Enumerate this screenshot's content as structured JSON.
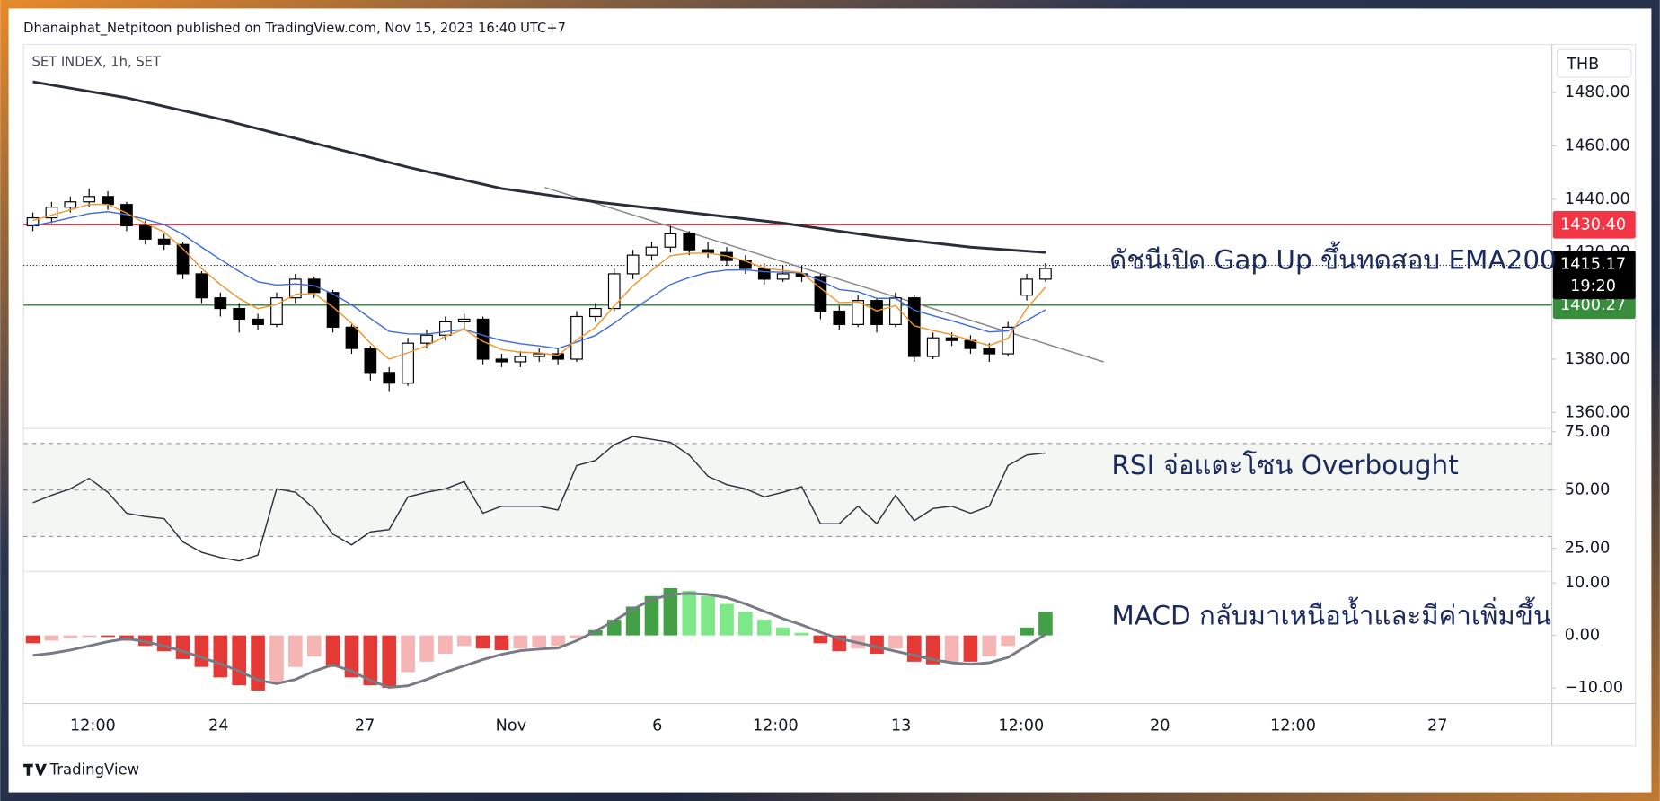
{
  "page": {
    "publisher_line": "Dhanaiphat_Netpitoon published on TradingView.com, Nov 15, 2023 16:40 UTC+7",
    "symbol": "SET INDEX, 1h, SET",
    "currency": "THB",
    "footer": "TradingView"
  },
  "chart_data": [
    {
      "type": "candlestick",
      "xlim": [
        -0.5,
        81
      ],
      "xticks": [
        {
          "value": 3.2,
          "label": "12:00"
        },
        {
          "value": 9.9,
          "label": "24"
        },
        {
          "value": 17.7,
          "label": "27"
        },
        {
          "value": 25.5,
          "label": "Nov"
        },
        {
          "value": 33.3,
          "label": "6"
        },
        {
          "value": 39.6,
          "label": "12:00"
        },
        {
          "value": 46.3,
          "label": "13"
        },
        {
          "value": 52.7,
          "label": "12:00"
        },
        {
          "value": 60.1,
          "label": "20"
        },
        {
          "value": 67.2,
          "label": "12:00"
        },
        {
          "value": 74.9,
          "label": "27"
        }
      ],
      "ylim": [
        1354,
        1498
      ],
      "yticks": [
        {
          "value": 1360,
          "label": "1360.00"
        },
        {
          "value": 1380,
          "label": "1380.00"
        },
        {
          "value": 1420,
          "label": "1420.00"
        },
        {
          "value": 1440,
          "label": "1440.00"
        },
        {
          "value": 1460,
          "label": "1460.00"
        },
        {
          "value": 1480,
          "label": "1480.00"
        }
      ],
      "up_color": "#ffffff",
      "down_color": "#000000",
      "wick_color": "#000000",
      "open": [
        1430,
        1433,
        1437,
        1439,
        1441,
        1438,
        1430,
        1425,
        1423,
        1412,
        1403,
        1399,
        1395,
        1393,
        1403,
        1410,
        1405,
        1392,
        1384,
        1375,
        1371,
        1386,
        1389,
        1394,
        1395,
        1380,
        1379,
        1381,
        1382,
        1380,
        1396,
        1399,
        1412,
        1419,
        1422,
        1427,
        1421,
        1420,
        1417,
        1414,
        1410,
        1412,
        1411,
        1398,
        1393,
        1402,
        1393,
        1403,
        1381,
        1388,
        1387,
        1384,
        1382,
        1404,
        1410
      ],
      "high": [
        1435,
        1439,
        1441,
        1444,
        1443,
        1439,
        1432,
        1427,
        1424,
        1413,
        1405,
        1401,
        1397,
        1405,
        1412,
        1411,
        1406,
        1393,
        1385,
        1377,
        1388,
        1391,
        1396,
        1397,
        1396,
        1382,
        1383,
        1384,
        1384,
        1398,
        1401,
        1414,
        1421,
        1424,
        1430,
        1428,
        1424,
        1422,
        1419,
        1416,
        1415,
        1415,
        1412,
        1400,
        1404,
        1403,
        1405,
        1404,
        1390,
        1390,
        1389,
        1386,
        1394,
        1412,
        1416
      ],
      "low": [
        1428,
        1431,
        1435,
        1437,
        1436,
        1428,
        1423,
        1421,
        1410,
        1401,
        1396,
        1390,
        1391,
        1392,
        1401,
        1403,
        1390,
        1382,
        1372,
        1368,
        1370,
        1384,
        1387,
        1391,
        1378,
        1377,
        1377,
        1379,
        1378,
        1379,
        1394,
        1398,
        1410,
        1417,
        1420,
        1419,
        1418,
        1415,
        1412,
        1408,
        1409,
        1409,
        1395,
        1391,
        1392,
        1390,
        1392,
        1379,
        1380,
        1385,
        1382,
        1379,
        1381,
        1402,
        1409
      ],
      "close": [
        1433,
        1437,
        1439,
        1441,
        1438,
        1430,
        1425,
        1423,
        1412,
        1403,
        1399,
        1395,
        1393,
        1403,
        1410,
        1405,
        1392,
        1384,
        1375,
        1371,
        1386,
        1389,
        1394,
        1395,
        1380,
        1379,
        1381,
        1382,
        1380,
        1396,
        1399,
        1412,
        1419,
        1422,
        1427,
        1421,
        1420,
        1417,
        1414,
        1410,
        1412,
        1411,
        1398,
        1393,
        1402,
        1393,
        1403,
        1381,
        1388,
        1387,
        1384,
        1382,
        1392,
        1410,
        1414
      ],
      "lines": [
        {
          "color": "#2a2e39",
          "width": 2.5,
          "values": [
            1484,
            1482.8,
            1481.6,
            1480.4,
            1479.2,
            1478,
            1476.4,
            1474.8,
            1473.2,
            1471.6,
            1470,
            1468.2,
            1466.4,
            1464.6,
            1462.8,
            1461,
            1459.2,
            1457.4,
            1455.6,
            1453.8,
            1452,
            1450.4,
            1448.8,
            1447.2,
            1445.6,
            1444,
            1443,
            1442,
            1441,
            1440,
            1439,
            1438.2,
            1437.4,
            1436.6,
            1435.8,
            1435,
            1434.2,
            1433.4,
            1432.6,
            1431.8,
            1431,
            1430,
            1429,
            1428,
            1427,
            1426,
            1425.2,
            1424.4,
            1423.6,
            1422.8,
            1422,
            1421.5,
            1421,
            1420.5,
            1420
          ]
        },
        {
          "color": "#3f6ad8",
          "width": 1.2,
          "values": [
            1430,
            1431.4,
            1433,
            1434.6,
            1435.3,
            1434.2,
            1432.4,
            1430.5,
            1426.8,
            1422,
            1417.4,
            1412.9,
            1409,
            1407.8,
            1408.2,
            1407.6,
            1404.5,
            1400.4,
            1395.3,
            1390.4,
            1389.5,
            1389.4,
            1390.3,
            1391.2,
            1389,
            1387,
            1385.8,
            1385,
            1384,
            1386.4,
            1388.9,
            1393.5,
            1398.6,
            1403.3,
            1408,
            1410.6,
            1412.5,
            1413.4,
            1413.5,
            1412.8,
            1412.6,
            1412.3,
            1409.4,
            1406.1,
            1405.3,
            1402.8,
            1402.8,
            1398.4,
            1396.3,
            1394.4,
            1392.3,
            1390.2,
            1390.6,
            1394.5,
            1398.5
          ]
        },
        {
          "color": "#f0952b",
          "width": 1.2,
          "values": [
            1432,
            1434,
            1436,
            1438,
            1438,
            1434.8,
            1430.9,
            1427.7,
            1421.4,
            1414,
            1408,
            1402.8,
            1398.9,
            1400.5,
            1404.3,
            1404.6,
            1399.6,
            1393.4,
            1386,
            1380,
            1382.4,
            1385,
            1388.6,
            1391.2,
            1386.7,
            1383.6,
            1382.6,
            1382.4,
            1381.4,
            1387.2,
            1391.9,
            1399.9,
            1407.5,
            1413.3,
            1418.8,
            1419.7,
            1419.8,
            1418.7,
            1416.8,
            1414.1,
            1413.3,
            1412.4,
            1406.6,
            1401.2,
            1401.5,
            1398.1,
            1400.1,
            1392.5,
            1390.7,
            1389.2,
            1387.1,
            1385.1,
            1387.8,
            1399,
            1407
          ]
        }
      ],
      "levels": [
        {
          "value": 1430.4,
          "label": "1430.40",
          "color": "#f23645"
        },
        {
          "value": 1400.27,
          "label": "1400.27",
          "color": "#388e3c"
        }
      ],
      "last": {
        "value": 1415.17,
        "label": "1415.17",
        "time": "19:20"
      },
      "trendline": {
        "x": [
          27.3,
          57.1
        ],
        "y": [
          1444.4,
          1379
        ],
        "color": "#8a8a8a"
      },
      "annotation": "ดัชนีเปิด Gap Up ขึ้นทดสอบ EMA200"
    },
    {
      "type": "line",
      "ylim": [
        15,
        76.4
      ],
      "yticks": [
        {
          "value": 25,
          "label": "25.00"
        },
        {
          "value": 50,
          "label": "50.00"
        },
        {
          "value": 75,
          "label": "75.00"
        }
      ],
      "levels": [
        30,
        50,
        70
      ],
      "band_color": "#f4f6f4",
      "color": "#2a2e39",
      "values": [
        44.5,
        47.7,
        50.5,
        55,
        49,
        40,
        38.6,
        37.7,
        27.7,
        23.2,
        21,
        19.5,
        22,
        50.5,
        49,
        42,
        31,
        26.4,
        32,
        33,
        47,
        49,
        50.5,
        53.6,
        40,
        43,
        43,
        43,
        41.4,
        60.5,
        62.7,
        69.5,
        73,
        71.8,
        70.5,
        65,
        55.9,
        52.3,
        50.5,
        47,
        49,
        51.4,
        35.5,
        35.5,
        43,
        35.5,
        47.7,
        36.8,
        42,
        43,
        40,
        43,
        60.5,
        65,
        65.9
      ],
      "annotation": "RSI จ่อแตะโซน Overbought"
    },
    {
      "type": "bar",
      "ylim": [
        -13,
        12.2
      ],
      "yticks": [
        {
          "value": -10,
          "label": "−10.00"
        },
        {
          "value": 0,
          "label": "0.00"
        },
        {
          "value": 10,
          "label": "10.00"
        }
      ],
      "histogram_colors": {
        "pos_up": "#43a047",
        "pos_down": "#7ee787",
        "neg_down": "#e53935",
        "neg_up": "#f5b5b5"
      },
      "values": [
        -1.5,
        -1,
        -0.5,
        -0.3,
        -0.3,
        -1,
        -2,
        -3,
        -4.5,
        -6,
        -8,
        -9.5,
        -10.5,
        -9,
        -6,
        -4,
        -6,
        -8,
        -9.5,
        -10,
        -7,
        -5,
        -3.5,
        -2,
        -2.5,
        -2.8,
        -2.5,
        -2.2,
        -2,
        -0.5,
        1,
        3,
        5.5,
        7.5,
        9,
        8.5,
        7.5,
        6,
        4.5,
        3,
        1.5,
        0.5,
        -1.5,
        -3,
        -2.5,
        -3.5,
        -2.5,
        -5,
        -5.5,
        -5,
        -5,
        -4,
        -2,
        1.5,
        4.5
      ],
      "signal_color": "#787b86",
      "signal": [
        -3.8,
        -3.4,
        -2.8,
        -2,
        -1.2,
        -0.6,
        -1.2,
        -2,
        -3,
        -4.2,
        -5.4,
        -6.8,
        -8.5,
        -9.2,
        -8.4,
        -6.8,
        -5.6,
        -6.8,
        -8.6,
        -9.9,
        -9.6,
        -8.4,
        -7,
        -5.8,
        -4.6,
        -3.6,
        -2.9,
        -2.6,
        -2.4,
        -1,
        0.8,
        2.8,
        5,
        6.8,
        7.8,
        8,
        7.8,
        7.2,
        6,
        4.6,
        3.2,
        2,
        0.6,
        -0.6,
        -1.4,
        -2.2,
        -3,
        -3.8,
        -4.6,
        -5.2,
        -5.5,
        -5.2,
        -4.2,
        -2,
        0.2
      ],
      "annotation": "MACD กลับมาเหนือน้ำและมีค่าเพิ่มขึ้น"
    }
  ]
}
